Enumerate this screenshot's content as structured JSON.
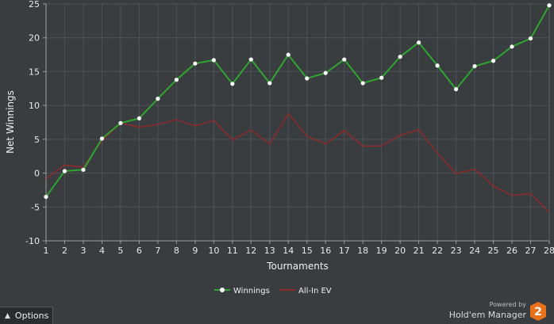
{
  "chart_data": {
    "type": "line",
    "x": [
      1,
      2,
      3,
      4,
      5,
      6,
      7,
      8,
      9,
      10,
      11,
      12,
      13,
      14,
      15,
      16,
      17,
      18,
      19,
      20,
      21,
      22,
      23,
      24,
      25,
      26,
      27,
      28
    ],
    "xlabel": "Tournaments",
    "ylabel": "Net Winnings",
    "ylim": [
      -10,
      25
    ],
    "yticks": [
      25,
      20,
      15,
      10,
      5,
      0,
      -5,
      -10
    ],
    "grid": true,
    "legend_position": "bottom-center",
    "series": [
      {
        "name": "Winnings",
        "color": "#2fa52f",
        "markers": true,
        "values": [
          -3.5,
          0.3,
          0.5,
          5.1,
          7.4,
          8.1,
          11.0,
          13.8,
          16.2,
          16.7,
          13.2,
          16.8,
          13.3,
          17.5,
          14.0,
          14.8,
          16.8,
          13.3,
          14.1,
          17.2,
          19.3,
          15.9,
          12.4,
          15.8,
          16.6,
          18.7,
          19.9,
          24.8
        ]
      },
      {
        "name": "All-In EV",
        "color": "#8e2a2a",
        "markers": false,
        "values": [
          -0.8,
          1.2,
          0.9,
          4.8,
          7.4,
          6.8,
          7.2,
          7.9,
          7.0,
          7.8,
          4.9,
          6.4,
          4.3,
          8.8,
          5.5,
          4.3,
          6.3,
          4.0,
          4.0,
          5.6,
          6.4,
          3.0,
          -0.1,
          0.6,
          -1.9,
          -3.3,
          -3.0,
          -5.8
        ]
      }
    ]
  },
  "options": {
    "label": "Options",
    "icon": "chevron-up-icon"
  },
  "branding": {
    "powered_by": "Powered by",
    "name": "Hold'em Manager",
    "badge": "2",
    "badge_color": "#e8711d"
  }
}
